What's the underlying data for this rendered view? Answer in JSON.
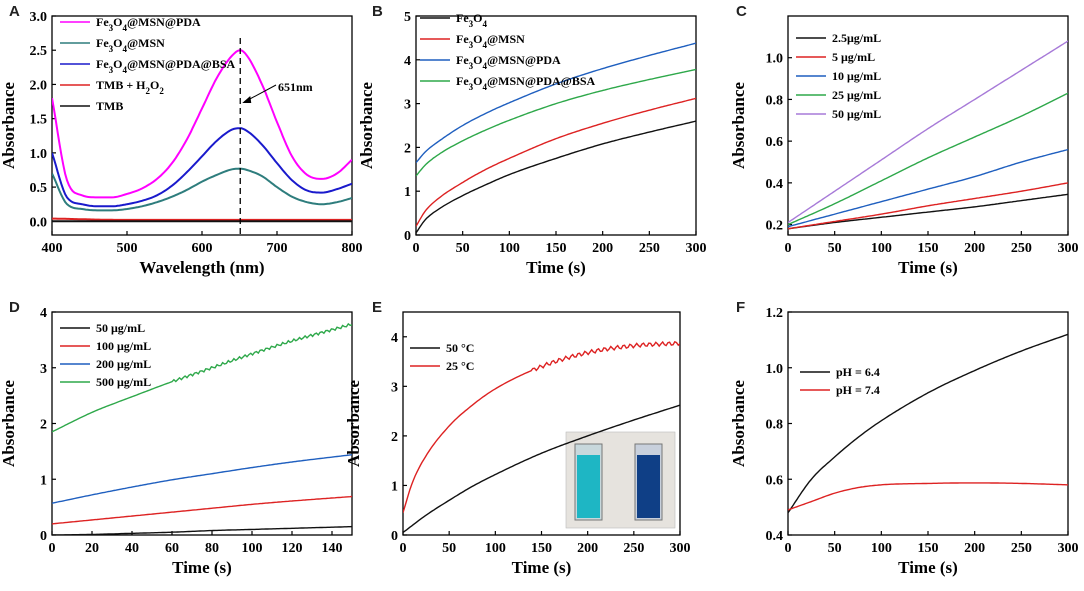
{
  "figure": {
    "panel_letters": [
      "A",
      "B",
      "C",
      "D",
      "E",
      "F"
    ]
  },
  "chart_data": [
    {
      "panel": "A",
      "type": "line",
      "xlabel": "Wavelength (nm)",
      "ylabel": "Absorbance",
      "xlim": [
        400,
        800
      ],
      "ylim": [
        -0.2,
        3.0
      ],
      "xticks": [
        400,
        500,
        600,
        700,
        800
      ],
      "yticks": [
        0.0,
        0.5,
        1.0,
        1.5,
        2.0,
        2.5,
        3.0
      ],
      "ytick_labels": [
        "0.0",
        "0.5",
        "1.0",
        "1.5",
        "2.0",
        "2.5",
        "3.0"
      ],
      "legend_position": "top-left",
      "annotation": {
        "text": "651nm",
        "x": 651
      },
      "series": [
        {
          "name": "Fe3O4@MSN@PDA",
          "color": "#ff00ff",
          "x": [
            400,
            420,
            440,
            460,
            480,
            500,
            520,
            540,
            560,
            580,
            600,
            620,
            640,
            651,
            660,
            680,
            700,
            720,
            740,
            760,
            780,
            800
          ],
          "y": [
            1.8,
            0.6,
            0.38,
            0.35,
            0.35,
            0.4,
            0.48,
            0.62,
            0.85,
            1.2,
            1.65,
            2.1,
            2.42,
            2.5,
            2.42,
            2.0,
            1.45,
            0.95,
            0.68,
            0.62,
            0.7,
            0.9
          ]
        },
        {
          "name": "Fe3O4@MSN",
          "color": "#2e7d7d",
          "x": [
            400,
            420,
            440,
            460,
            480,
            500,
            520,
            540,
            560,
            580,
            600,
            620,
            640,
            651,
            660,
            680,
            700,
            720,
            740,
            760,
            780,
            800
          ],
          "y": [
            0.7,
            0.25,
            0.18,
            0.16,
            0.16,
            0.18,
            0.22,
            0.28,
            0.36,
            0.46,
            0.58,
            0.68,
            0.76,
            0.77,
            0.75,
            0.66,
            0.5,
            0.36,
            0.28,
            0.25,
            0.28,
            0.34
          ]
        },
        {
          "name": "Fe3O4@MSN@PDA@BSA",
          "color": "#1a1acc",
          "x": [
            400,
            420,
            440,
            460,
            480,
            500,
            520,
            540,
            560,
            580,
            600,
            620,
            640,
            651,
            660,
            680,
            700,
            720,
            740,
            760,
            780,
            800
          ],
          "y": [
            1.0,
            0.35,
            0.25,
            0.22,
            0.22,
            0.25,
            0.3,
            0.38,
            0.52,
            0.72,
            0.95,
            1.18,
            1.34,
            1.36,
            1.32,
            1.12,
            0.85,
            0.6,
            0.45,
            0.42,
            0.47,
            0.55
          ]
        },
        {
          "name": "TMB + H2O2",
          "color": "#dd2222",
          "x": [
            400,
            500,
            600,
            700,
            800
          ],
          "y": [
            0.04,
            0.02,
            0.02,
            0.02,
            0.02
          ]
        },
        {
          "name": "TMB",
          "color": "#111111",
          "x": [
            400,
            500,
            600,
            700,
            800
          ],
          "y": [
            0.0,
            0.0,
            0.0,
            0.0,
            0.0
          ]
        }
      ]
    },
    {
      "panel": "B",
      "type": "line",
      "xlabel": "Time (s)",
      "ylabel": "Absorbance",
      "xlim": [
        0,
        300
      ],
      "ylim": [
        0,
        5
      ],
      "xticks": [
        0,
        50,
        100,
        150,
        200,
        250,
        300
      ],
      "yticks": [
        0,
        1,
        2,
        3,
        4,
        5
      ],
      "ytick_labels": [
        "0",
        "1",
        "2",
        "3",
        "4",
        "5"
      ],
      "legend_position": "top-left",
      "series": [
        {
          "name": "Fe3O4",
          "color": "#111111",
          "x": [
            0,
            10,
            25,
            50,
            75,
            100,
            150,
            200,
            250,
            300
          ],
          "y": [
            0.05,
            0.35,
            0.6,
            0.9,
            1.15,
            1.38,
            1.75,
            2.08,
            2.35,
            2.6
          ]
        },
        {
          "name": "Fe3O4@MSN",
          "color": "#dd2222",
          "x": [
            0,
            10,
            25,
            50,
            75,
            100,
            150,
            200,
            250,
            300
          ],
          "y": [
            0.2,
            0.55,
            0.85,
            1.2,
            1.5,
            1.75,
            2.2,
            2.55,
            2.85,
            3.12
          ]
        },
        {
          "name": "Fe3O4@MSN@PDA",
          "color": "#1f5fbf",
          "x": [
            0,
            10,
            25,
            50,
            75,
            100,
            150,
            200,
            250,
            300
          ],
          "y": [
            1.65,
            1.9,
            2.15,
            2.5,
            2.78,
            3.02,
            3.45,
            3.8,
            4.1,
            4.38
          ]
        },
        {
          "name": "Fe3O4@MSN@PDA@BSA",
          "color": "#2ea84a",
          "x": [
            0,
            10,
            25,
            50,
            75,
            100,
            150,
            200,
            250,
            300
          ],
          "y": [
            1.35,
            1.6,
            1.85,
            2.15,
            2.4,
            2.62,
            3.0,
            3.3,
            3.55,
            3.78
          ]
        }
      ]
    },
    {
      "panel": "C",
      "type": "line",
      "xlabel": "Time (s)",
      "ylabel": "Absorbance",
      "xlim": [
        0,
        300
      ],
      "ylim": [
        0.15,
        1.2
      ],
      "xticks": [
        0,
        50,
        100,
        150,
        200,
        250,
        300
      ],
      "yticks": [
        0.2,
        0.4,
        0.6,
        0.8,
        1.0
      ],
      "ytick_labels": [
        "0.2",
        "0.4",
        "0.6",
        "0.8",
        "1.0"
      ],
      "legend_position": "top-left",
      "series": [
        {
          "name": "2.5μg/mL",
          "color": "#111111",
          "x": [
            0,
            50,
            100,
            150,
            200,
            250,
            300
          ],
          "y": [
            0.18,
            0.21,
            0.235,
            0.26,
            0.285,
            0.315,
            0.345
          ]
        },
        {
          "name": "5   μg/mL",
          "color": "#dd2222",
          "x": [
            0,
            50,
            100,
            150,
            200,
            250,
            300
          ],
          "y": [
            0.18,
            0.215,
            0.25,
            0.29,
            0.325,
            0.36,
            0.4
          ]
        },
        {
          "name": "10 μg/mL",
          "color": "#1f5fbf",
          "x": [
            0,
            50,
            100,
            150,
            200,
            250,
            300
          ],
          "y": [
            0.19,
            0.25,
            0.31,
            0.37,
            0.43,
            0.5,
            0.56
          ]
        },
        {
          "name": "25 μg/mL",
          "color": "#2ea84a",
          "x": [
            0,
            50,
            100,
            150,
            200,
            250,
            300
          ],
          "y": [
            0.2,
            0.3,
            0.41,
            0.52,
            0.62,
            0.72,
            0.83
          ]
        },
        {
          "name": "50 μg/mL",
          "color": "#a77ad8",
          "x": [
            0,
            50,
            100,
            150,
            200,
            250,
            300
          ],
          "y": [
            0.21,
            0.36,
            0.51,
            0.66,
            0.8,
            0.94,
            1.08
          ]
        }
      ]
    },
    {
      "panel": "D",
      "type": "line",
      "xlabel": "Time (s)",
      "ylabel": "Absorbance",
      "xlim": [
        0,
        150
      ],
      "ylim": [
        0,
        4
      ],
      "xticks": [
        0,
        20,
        40,
        60,
        80,
        100,
        120,
        140
      ],
      "yticks": [
        0,
        1,
        2,
        3,
        4
      ],
      "ytick_labels": [
        "0",
        "1",
        "2",
        "3",
        "4"
      ],
      "legend_position": "top-left",
      "series": [
        {
          "name": "50 μg/mL",
          "color": "#111111",
          "x": [
            0,
            20,
            40,
            60,
            80,
            100,
            120,
            150
          ],
          "y": [
            0.0,
            0.01,
            0.03,
            0.05,
            0.08,
            0.1,
            0.12,
            0.15
          ]
        },
        {
          "name": "100 μg/mL",
          "color": "#dd2222",
          "x": [
            0,
            20,
            40,
            60,
            80,
            100,
            120,
            150
          ],
          "y": [
            0.2,
            0.27,
            0.34,
            0.41,
            0.48,
            0.55,
            0.61,
            0.69
          ]
        },
        {
          "name": "200 μg/mL",
          "color": "#1f5fbf",
          "x": [
            0,
            20,
            40,
            60,
            80,
            100,
            120,
            150
          ],
          "y": [
            0.57,
            0.72,
            0.86,
            0.99,
            1.1,
            1.21,
            1.31,
            1.44
          ]
        },
        {
          "name": "500 μg/mL",
          "color": "#2ea84a",
          "x": [
            0,
            20,
            40,
            60,
            80,
            100,
            120,
            150
          ],
          "y": [
            1.85,
            2.2,
            2.48,
            2.75,
            3.0,
            3.25,
            3.48,
            3.78
          ]
        }
      ]
    },
    {
      "panel": "E",
      "type": "line",
      "xlabel": "Time (s)",
      "ylabel": "Absorbance",
      "xlim": [
        0,
        300
      ],
      "ylim": [
        0,
        4.5
      ],
      "xticks": [
        0,
        50,
        100,
        150,
        200,
        250,
        300
      ],
      "yticks": [
        0,
        1,
        2,
        3,
        4
      ],
      "ytick_labels": [
        "0",
        "1",
        "2",
        "3",
        "4"
      ],
      "legend_position": "top-left",
      "inset": "photo of two cuvettes: light blue (left) and dark blue (right)",
      "series": [
        {
          "name": "50 °C",
          "color": "#111111",
          "x": [
            0,
            25,
            50,
            75,
            100,
            150,
            200,
            250,
            300
          ],
          "y": [
            0.05,
            0.4,
            0.7,
            0.98,
            1.22,
            1.65,
            2.0,
            2.32,
            2.62
          ]
        },
        {
          "name": "25 °C",
          "color": "#dd2222",
          "x": [
            0,
            10,
            25,
            50,
            75,
            100,
            150,
            200,
            250,
            300
          ],
          "y": [
            0.45,
            1.05,
            1.6,
            2.2,
            2.62,
            2.95,
            3.4,
            3.68,
            3.82,
            3.87
          ]
        }
      ]
    },
    {
      "panel": "F",
      "type": "line",
      "xlabel": "Time (s)",
      "ylabel": "Absorbance",
      "xlim": [
        0,
        300
      ],
      "ylim": [
        0.4,
        1.2
      ],
      "xticks": [
        0,
        50,
        100,
        150,
        200,
        250,
        300
      ],
      "yticks": [
        0.4,
        0.6,
        0.8,
        1.0,
        1.2
      ],
      "ytick_labels": [
        "0.4",
        "0.6",
        "0.8",
        "1.0",
        "1.2"
      ],
      "legend_position": "center-left",
      "series": [
        {
          "name": "pH = 6.4",
          "color": "#111111",
          "x": [
            0,
            25,
            50,
            75,
            100,
            150,
            200,
            250,
            300
          ],
          "y": [
            0.48,
            0.6,
            0.68,
            0.75,
            0.81,
            0.91,
            0.99,
            1.06,
            1.12
          ]
        },
        {
          "name": "pH = 7.4",
          "color": "#dd2222",
          "x": [
            0,
            25,
            50,
            75,
            100,
            150,
            200,
            250,
            300
          ],
          "y": [
            0.49,
            0.52,
            0.55,
            0.57,
            0.58,
            0.585,
            0.587,
            0.585,
            0.58
          ]
        }
      ]
    }
  ]
}
